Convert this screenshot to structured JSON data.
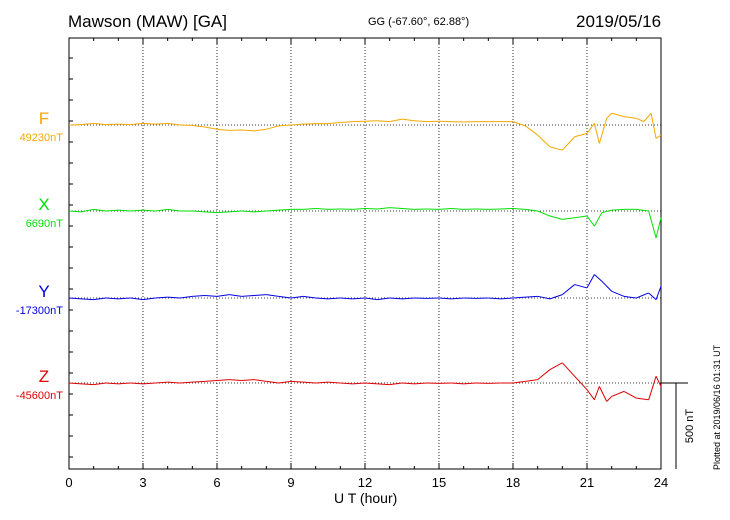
{
  "header": {
    "title": "Mawson (MAW)  [GA]",
    "coords": "GG (-67.60°,  62.88°)",
    "date": "2019/05/16"
  },
  "footer": {
    "x_axis_label": "U T (hour)",
    "plotted_note": "Plotted at 2019/06/16 01:31  UT"
  },
  "scale_bar": {
    "label": "500 nT",
    "value_nT": 500
  },
  "colors": {
    "F": "#f5a800",
    "X": "#00e000",
    "Y": "#0000e0",
    "Z": "#e00000"
  },
  "chart_data": {
    "type": "line",
    "title": "Mawson (MAW)  [GA]",
    "xlabel": "U T (hour)",
    "xlim": [
      0,
      24
    ],
    "xticks": [
      0,
      3,
      6,
      9,
      12,
      15,
      18,
      21,
      24
    ],
    "grid": true,
    "unit": "nT",
    "series": [
      {
        "name": "F",
        "baseline_label": "49230nT",
        "baseline": 49230,
        "points": [
          [
            0,
            49230
          ],
          [
            0.5,
            49232
          ],
          [
            1,
            49240
          ],
          [
            1.5,
            49232
          ],
          [
            2,
            49235
          ],
          [
            2.5,
            49232
          ],
          [
            3,
            49240
          ],
          [
            3.5,
            49235
          ],
          [
            4,
            49240
          ],
          [
            4.5,
            49230
          ],
          [
            5,
            49228
          ],
          [
            5.5,
            49218
          ],
          [
            6,
            49205
          ],
          [
            6.5,
            49198
          ],
          [
            7,
            49200
          ],
          [
            7.5,
            49195
          ],
          [
            8,
            49205
          ],
          [
            8.5,
            49225
          ],
          [
            9,
            49230
          ],
          [
            9.5,
            49235
          ],
          [
            10,
            49238
          ],
          [
            10.5,
            49238
          ],
          [
            11,
            49245
          ],
          [
            11.5,
            49250
          ],
          [
            12,
            49252
          ],
          [
            12.5,
            49255
          ],
          [
            13,
            49250
          ],
          [
            13.5,
            49265
          ],
          [
            14,
            49255
          ],
          [
            14.5,
            49250
          ],
          [
            15,
            49252
          ],
          [
            15.5,
            49250
          ],
          [
            16,
            49248
          ],
          [
            16.5,
            49250
          ],
          [
            17,
            49250
          ],
          [
            17.5,
            49250
          ],
          [
            18,
            49250
          ],
          [
            18.5,
            49225
          ],
          [
            19,
            49170
          ],
          [
            19.5,
            49100
          ],
          [
            20,
            49080
          ],
          [
            20.5,
            49160
          ],
          [
            21,
            49180
          ],
          [
            21.3,
            49240
          ],
          [
            21.5,
            49120
          ],
          [
            21.8,
            49270
          ],
          [
            22,
            49300
          ],
          [
            22.5,
            49280
          ],
          [
            23,
            49270
          ],
          [
            23.3,
            49250
          ],
          [
            23.6,
            49300
          ],
          [
            23.8,
            49150
          ],
          [
            24,
            49170
          ]
        ]
      },
      {
        "name": "X",
        "baseline_label": "6690nT",
        "baseline": 6690,
        "points": [
          [
            0,
            6690
          ],
          [
            0.5,
            6685
          ],
          [
            1,
            6700
          ],
          [
            1.5,
            6690
          ],
          [
            2,
            6695
          ],
          [
            2.5,
            6690
          ],
          [
            3,
            6695
          ],
          [
            3.5,
            6690
          ],
          [
            4,
            6700
          ],
          [
            4.5,
            6690
          ],
          [
            5,
            6690
          ],
          [
            5.5,
            6685
          ],
          [
            6,
            6680
          ],
          [
            6.5,
            6685
          ],
          [
            7,
            6690
          ],
          [
            7.5,
            6685
          ],
          [
            8,
            6690
          ],
          [
            8.5,
            6695
          ],
          [
            9,
            6700
          ],
          [
            9.5,
            6700
          ],
          [
            10,
            6705
          ],
          [
            10.5,
            6700
          ],
          [
            11,
            6702
          ],
          [
            11.5,
            6700
          ],
          [
            12,
            6705
          ],
          [
            12.5,
            6702
          ],
          [
            13,
            6710
          ],
          [
            13.5,
            6705
          ],
          [
            14,
            6700
          ],
          [
            14.5,
            6702
          ],
          [
            15,
            6700
          ],
          [
            15.5,
            6705
          ],
          [
            16,
            6700
          ],
          [
            16.5,
            6702
          ],
          [
            17,
            6700
          ],
          [
            17.5,
            6702
          ],
          [
            18,
            6705
          ],
          [
            18.5,
            6700
          ],
          [
            19,
            6690
          ],
          [
            19.5,
            6660
          ],
          [
            20,
            6640
          ],
          [
            20.5,
            6650
          ],
          [
            21,
            6660
          ],
          [
            21.3,
            6600
          ],
          [
            21.6,
            6680
          ],
          [
            22,
            6695
          ],
          [
            22.5,
            6700
          ],
          [
            23,
            6700
          ],
          [
            23.5,
            6690
          ],
          [
            23.8,
            6530
          ],
          [
            24,
            6650
          ]
        ]
      },
      {
        "name": "Y",
        "baseline_label": "-17300nT",
        "baseline": -17300,
        "points": [
          [
            0,
            -17300
          ],
          [
            0.5,
            -17305
          ],
          [
            1,
            -17310
          ],
          [
            1.5,
            -17300
          ],
          [
            2,
            -17305
          ],
          [
            2.5,
            -17300
          ],
          [
            3,
            -17310
          ],
          [
            3.5,
            -17300
          ],
          [
            4,
            -17295
          ],
          [
            4.5,
            -17300
          ],
          [
            5,
            -17290
          ],
          [
            5.5,
            -17285
          ],
          [
            6,
            -17290
          ],
          [
            6.5,
            -17280
          ],
          [
            7,
            -17290
          ],
          [
            7.5,
            -17285
          ],
          [
            8,
            -17280
          ],
          [
            8.5,
            -17290
          ],
          [
            9,
            -17300
          ],
          [
            9.5,
            -17290
          ],
          [
            10,
            -17300
          ],
          [
            10.5,
            -17305
          ],
          [
            11,
            -17300
          ],
          [
            11.5,
            -17305
          ],
          [
            12,
            -17300
          ],
          [
            12.5,
            -17310
          ],
          [
            13,
            -17300
          ],
          [
            13.5,
            -17305
          ],
          [
            14,
            -17300
          ],
          [
            14.5,
            -17302
          ],
          [
            15,
            -17300
          ],
          [
            15.5,
            -17305
          ],
          [
            16,
            -17300
          ],
          [
            16.5,
            -17302
          ],
          [
            17,
            -17300
          ],
          [
            17.5,
            -17305
          ],
          [
            18,
            -17300
          ],
          [
            18.5,
            -17295
          ],
          [
            19,
            -17290
          ],
          [
            19.5,
            -17305
          ],
          [
            20,
            -17280
          ],
          [
            20.5,
            -17220
          ],
          [
            21,
            -17240
          ],
          [
            21.3,
            -17160
          ],
          [
            21.6,
            -17200
          ],
          [
            22,
            -17260
          ],
          [
            22.5,
            -17290
          ],
          [
            23,
            -17300
          ],
          [
            23.5,
            -17270
          ],
          [
            23.8,
            -17310
          ],
          [
            24,
            -17230
          ]
        ]
      },
      {
        "name": "Z",
        "baseline_label": "-45600nT",
        "baseline": -45600,
        "points": [
          [
            0,
            -45600
          ],
          [
            0.5,
            -45605
          ],
          [
            1,
            -45610
          ],
          [
            1.5,
            -45600
          ],
          [
            2,
            -45605
          ],
          [
            2.5,
            -45600
          ],
          [
            3,
            -45605
          ],
          [
            3.5,
            -45600
          ],
          [
            4,
            -45595
          ],
          [
            4.5,
            -45600
          ],
          [
            5,
            -45595
          ],
          [
            5.5,
            -45590
          ],
          [
            6,
            -45585
          ],
          [
            6.5,
            -45580
          ],
          [
            7,
            -45585
          ],
          [
            7.5,
            -45580
          ],
          [
            8,
            -45590
          ],
          [
            8.5,
            -45600
          ],
          [
            9,
            -45590
          ],
          [
            9.5,
            -45595
          ],
          [
            10,
            -45600
          ],
          [
            10.5,
            -45595
          ],
          [
            11,
            -45600
          ],
          [
            11.5,
            -45605
          ],
          [
            12,
            -45600
          ],
          [
            12.5,
            -45605
          ],
          [
            13,
            -45610
          ],
          [
            13.5,
            -45600
          ],
          [
            14,
            -45605
          ],
          [
            14.5,
            -45600
          ],
          [
            15,
            -45602
          ],
          [
            15.5,
            -45600
          ],
          [
            16,
            -45605
          ],
          [
            16.5,
            -45600
          ],
          [
            17,
            -45602
          ],
          [
            17.5,
            -45600
          ],
          [
            18,
            -45600
          ],
          [
            18.5,
            -45590
          ],
          [
            19,
            -45580
          ],
          [
            19.5,
            -45520
          ],
          [
            20,
            -45480
          ],
          [
            20.5,
            -45560
          ],
          [
            21,
            -45640
          ],
          [
            21.3,
            -45700
          ],
          [
            21.5,
            -45620
          ],
          [
            21.8,
            -45710
          ],
          [
            22,
            -45680
          ],
          [
            22.5,
            -45650
          ],
          [
            23,
            -45690
          ],
          [
            23.5,
            -45700
          ],
          [
            23.8,
            -45560
          ],
          [
            24,
            -45620
          ]
        ]
      }
    ]
  }
}
